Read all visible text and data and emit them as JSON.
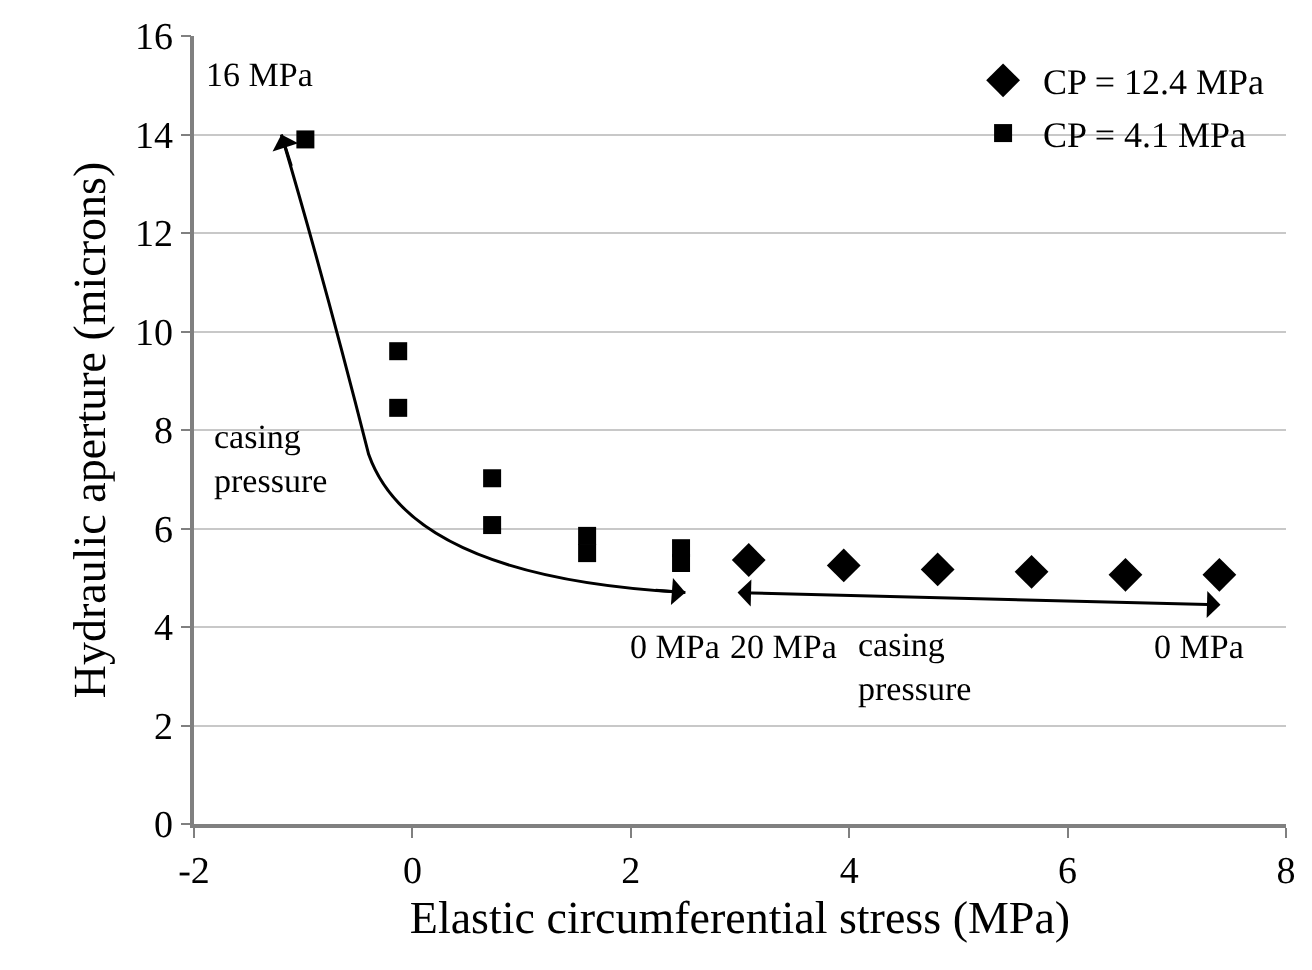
{
  "chart_data": {
    "type": "scatter",
    "xlabel": "Elastic circumferential stress (MPa)",
    "ylabel": "Hydraulic aperture (microns)",
    "series": [
      {
        "name": "CP = 12.4 MPa",
        "color": "#000000",
        "marker": "diamond",
        "x": [
          3.08,
          3.95,
          4.81,
          5.67,
          6.53,
          7.39
        ],
        "values": [
          5.36,
          5.25,
          5.17,
          5.12,
          5.06,
          5.06
        ]
      },
      {
        "name": "CP = 4.1 MPa",
        "color": "#000000",
        "marker": "square",
        "x": [
          -0.98,
          -0.13,
          -0.13,
          0.73,
          0.73,
          1.6,
          1.6,
          2.46,
          2.46
        ],
        "values": [
          13.9,
          9.6,
          8.45,
          7.02,
          6.07,
          5.85,
          5.5,
          5.6,
          5.3
        ]
      }
    ],
    "xlim": [
      -2,
      8
    ],
    "xticks": [
      -2,
      0,
      2,
      4,
      6,
      8
    ],
    "ylim": [
      0,
      16
    ],
    "yticks": [
      0,
      2,
      4,
      6,
      8,
      10,
      12,
      14,
      16
    ],
    "grid": "y",
    "legend": "top right",
    "annotations": [
      "16 MPa",
      "casing\npressure",
      "0 MPa",
      "20 MPa",
      "casing\npressure",
      "0 MPa"
    ]
  }
}
